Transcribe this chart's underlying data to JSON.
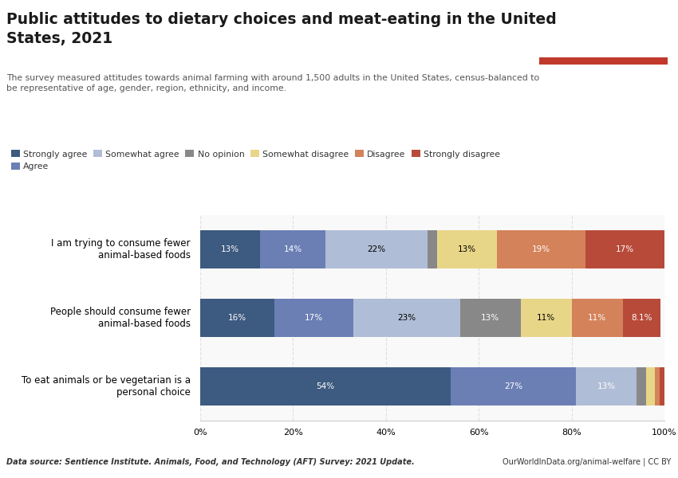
{
  "title": "Public attitudes to dietary choices and meat-eating in the United\nStates, 2021",
  "subtitle": "The survey measured attitudes towards animal farming with around 1,500 adults in the United States, census-balanced to\nbe representative of age, gender, region, ethnicity, and income.",
  "categories": [
    "I am trying to consume fewer\nanimal-based foods",
    "People should consume fewer\nanimal-based foods",
    "To eat animals or be vegetarian is a\npersonal choice"
  ],
  "legend_labels": [
    "Strongly agree",
    "Agree",
    "Somewhat agree",
    "No opinion",
    "Somewhat disagree",
    "Disagree",
    "Strongly disagree"
  ],
  "colors": [
    "#3d5a80",
    "#6b7fb5",
    "#b0bdd6",
    "#888888",
    "#e8d688",
    "#d4825a",
    "#b84a3a"
  ],
  "data": [
    [
      13,
      14,
      22,
      2,
      13,
      19,
      17
    ],
    [
      16,
      17,
      23,
      13,
      11,
      11,
      8.1
    ],
    [
      54,
      27,
      13,
      2,
      2,
      1,
      1
    ]
  ],
  "data_labels": [
    [
      "13%",
      "14%",
      "22%",
      "",
      "13%",
      "19%",
      "17%"
    ],
    [
      "16%",
      "17%",
      "23%",
      "13%",
      "11%",
      "11%",
      "8.1%"
    ],
    [
      "54%",
      "27%",
      "13%",
      "",
      "",
      "",
      ""
    ]
  ],
  "label_colors": [
    [
      "white",
      "white",
      "black",
      "",
      "black",
      "white",
      "white"
    ],
    [
      "white",
      "white",
      "black",
      "white",
      "black",
      "white",
      "white"
    ],
    [
      "white",
      "white",
      "white",
      "",
      "",
      "",
      ""
    ]
  ],
  "source_left": "Data source: Sentience Institute. Animals, Food, and Technology (AFT) Survey: 2021 Update.",
  "source_right": "OurWorldInData.org/animal-welfare | CC BY",
  "background_color": "#ffffff",
  "plot_bg": "#f9f9f9",
  "grid_color": "#e0e0e0",
  "bar_height": 0.55,
  "xlim": [
    0,
    100
  ],
  "logo_bg": "#0d2d52",
  "logo_red": "#c0392b"
}
